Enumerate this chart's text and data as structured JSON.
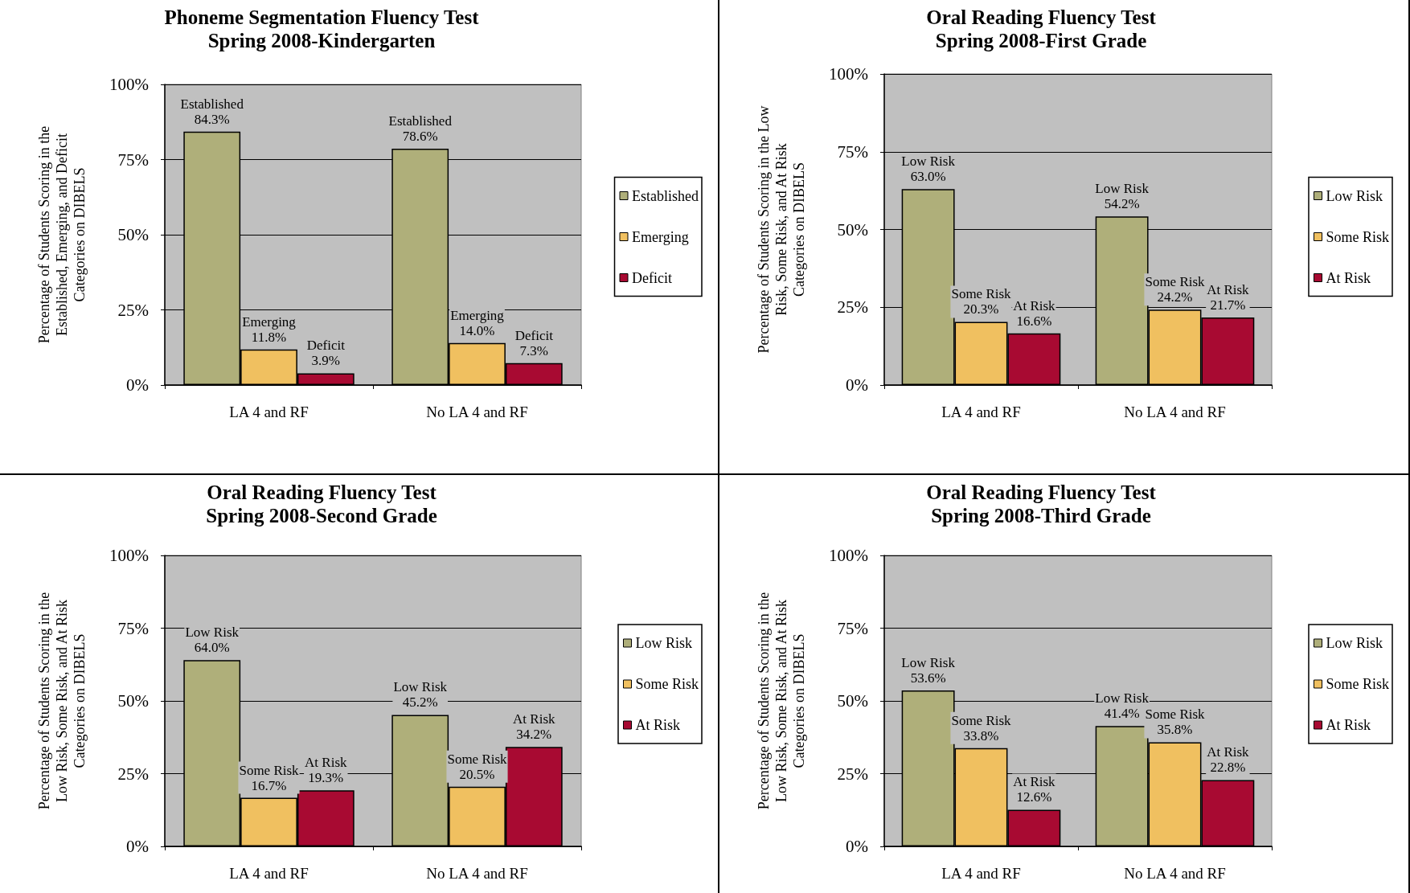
{
  "chart_data": [
    {
      "type": "bar",
      "title": "Phoneme Segmentation Fluency Test",
      "subtitle": "Spring 2008-Kindergarten",
      "ylabel": "Percentage of Students Scoring in the\nEstablished, Emerging, and Deficit\nCategories on DIBELS",
      "categories": [
        "LA 4 and RF",
        "No LA 4 and RF"
      ],
      "ylim": [
        0,
        100
      ],
      "yticks": [
        {
          "value": 0,
          "label": "0%"
        },
        {
          "value": 25,
          "label": "25%"
        },
        {
          "value": 50,
          "label": "50%"
        },
        {
          "value": 75,
          "label": "75%"
        },
        {
          "value": 100,
          "label": "100%"
        }
      ],
      "grid": "y",
      "legend": "right",
      "series": [
        {
          "name": "Established",
          "color": "#afaf7a",
          "values": [
            84.3,
            78.6
          ],
          "value_labels": [
            "84.3%",
            "78.6%"
          ]
        },
        {
          "name": "Emerging",
          "color": "#f0c060",
          "values": [
            11.8,
            14.0
          ],
          "value_labels": [
            "11.8%",
            "14.0%"
          ]
        },
        {
          "name": "Deficit",
          "color": "#a80a32",
          "values": [
            3.9,
            7.3
          ],
          "value_labels": [
            "3.9%",
            "7.3%"
          ]
        }
      ]
    },
    {
      "type": "bar",
      "title": "Oral Reading Fluency Test",
      "subtitle": "Spring 2008-First Grade",
      "ylabel": "Percentage of Students Scoring in the Low\nRisk, Some Risk, and At Risk\nCategories on DIBELS",
      "categories": [
        "LA 4 and RF",
        "No LA 4 and RF"
      ],
      "ylim": [
        0,
        100
      ],
      "yticks": [
        {
          "value": 0,
          "label": "0%"
        },
        {
          "value": 25,
          "label": "25%"
        },
        {
          "value": 50,
          "label": "50%"
        },
        {
          "value": 75,
          "label": "75%"
        },
        {
          "value": 100,
          "label": "100%"
        }
      ],
      "grid": "y",
      "legend": "right",
      "series": [
        {
          "name": "Low Risk",
          "color": "#afaf7a",
          "values": [
            63.0,
            54.2
          ],
          "value_labels": [
            "63.0%",
            "54.2%"
          ]
        },
        {
          "name": "Some Risk",
          "color": "#f0c060",
          "values": [
            20.3,
            24.2
          ],
          "value_labels": [
            "20.3%",
            "24.2%"
          ]
        },
        {
          "name": "At Risk",
          "color": "#a80a32",
          "values": [
            16.6,
            21.7
          ],
          "value_labels": [
            "16.6%",
            "21.7%"
          ]
        }
      ]
    },
    {
      "type": "bar",
      "title": "Oral Reading Fluency Test",
      "subtitle": "Spring 2008-Second Grade",
      "ylabel": "Percentage of Students Scoring in the\nLow Risk, Some Risk, and At Risk\nCategories on DIBELS",
      "categories": [
        "LA 4 and RF",
        "No LA 4 and RF"
      ],
      "ylim": [
        0,
        100
      ],
      "yticks": [
        {
          "value": 0,
          "label": "0%"
        },
        {
          "value": 25,
          "label": "25%"
        },
        {
          "value": 50,
          "label": "50%"
        },
        {
          "value": 75,
          "label": "75%"
        },
        {
          "value": 100,
          "label": "100%"
        }
      ],
      "grid": "y",
      "legend": "right",
      "series": [
        {
          "name": "Low Risk",
          "color": "#afaf7a",
          "values": [
            64.0,
            45.2
          ],
          "value_labels": [
            "64.0%",
            "45.2%"
          ]
        },
        {
          "name": "Some Risk",
          "color": "#f0c060",
          "values": [
            16.7,
            20.5
          ],
          "value_labels": [
            "16.7%",
            "20.5%"
          ]
        },
        {
          "name": "At Risk",
          "color": "#a80a32",
          "values": [
            19.3,
            34.2
          ],
          "value_labels": [
            "19.3%",
            "34.2%"
          ]
        }
      ]
    },
    {
      "type": "bar",
      "title": "Oral Reading Fluency Test",
      "subtitle": "Spring 2008-Third Grade",
      "ylabel": "Percentage of Students Scoring in the\nLow Risk, Some Risk, and At Risk\nCategories on DIBELS",
      "categories": [
        "LA 4 and RF",
        "No LA 4 and RF"
      ],
      "ylim": [
        0,
        100
      ],
      "yticks": [
        {
          "value": 0,
          "label": "0%"
        },
        {
          "value": 25,
          "label": "25%"
        },
        {
          "value": 50,
          "label": "50%"
        },
        {
          "value": 75,
          "label": "75%"
        },
        {
          "value": 100,
          "label": "100%"
        }
      ],
      "grid": "y",
      "legend": "right",
      "series": [
        {
          "name": "Low Risk",
          "color": "#afaf7a",
          "values": [
            53.6,
            41.4
          ],
          "value_labels": [
            "53.6%",
            "41.4%"
          ]
        },
        {
          "name": "Some Risk",
          "color": "#f0c060",
          "values": [
            33.8,
            35.8
          ],
          "value_labels": [
            "33.8%",
            "35.8%"
          ]
        },
        {
          "name": "At Risk",
          "color": "#a80a32",
          "values": [
            12.6,
            22.8
          ],
          "value_labels": [
            "12.6%",
            "22.8%"
          ]
        }
      ]
    }
  ]
}
